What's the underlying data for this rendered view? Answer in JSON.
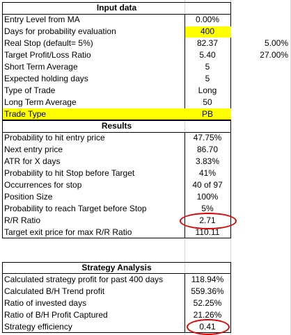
{
  "input": {
    "title": "Input data",
    "rows": [
      {
        "label": "Entry Level from MA",
        "value": "0.00%",
        "extra": ""
      },
      {
        "label": "Days for probability evaluation",
        "value": "400",
        "extra": ""
      },
      {
        "label": "Real Stop (default= 5%)",
        "value": "82.37",
        "extra": "5.00%"
      },
      {
        "label": "Target Profit/Loss Ratio",
        "value": "5.40",
        "extra": "27.00%"
      },
      {
        "label": "Short Term Average",
        "value": "5",
        "extra": ""
      },
      {
        "label": "Expected holding days",
        "value": "5",
        "extra": ""
      },
      {
        "label": "Type of Trade",
        "value": "Long",
        "extra": ""
      },
      {
        "label": "Long Term Average",
        "value": "50",
        "extra": ""
      },
      {
        "label": "Trade Type",
        "value": "PB",
        "extra": ""
      }
    ]
  },
  "results": {
    "title": "Results",
    "rows": [
      {
        "label": "Probability to hit entry price",
        "value": "47.75%"
      },
      {
        "label": "Next entry price",
        "value": "86.70"
      },
      {
        "label": "ATR for X days",
        "value": "3.83%"
      },
      {
        "label": "Probability to hit Stop before Target",
        "value": "41%"
      },
      {
        "label": "Occurrences for stop",
        "value": "40 of 97"
      },
      {
        "label": "Position Size",
        "value": "100%"
      },
      {
        "label": "Probability to reach Target before Stop",
        "value": "5%"
      },
      {
        "label": "R/R Ratio",
        "value": "2.71"
      },
      {
        "label": "Target exit price for max R/R Ratio",
        "value": "110.11"
      }
    ]
  },
  "strategy": {
    "title": "Strategy Analysis",
    "rows": [
      {
        "label": "Calculated strategy profit for past 400 days",
        "value": "118.94%"
      },
      {
        "label": "Calculated B/H Trend profit",
        "value": "559.36%"
      },
      {
        "label": "Ratio of invested days",
        "value": "52.25%"
      },
      {
        "label": "Ratio of B/H Profit Captured",
        "value": "21.26%"
      },
      {
        "label": "Strategy efficiency",
        "value": "0.41"
      }
    ]
  },
  "colors": {
    "highlight": "#ffff00",
    "annotation_circle": "#e00000"
  }
}
